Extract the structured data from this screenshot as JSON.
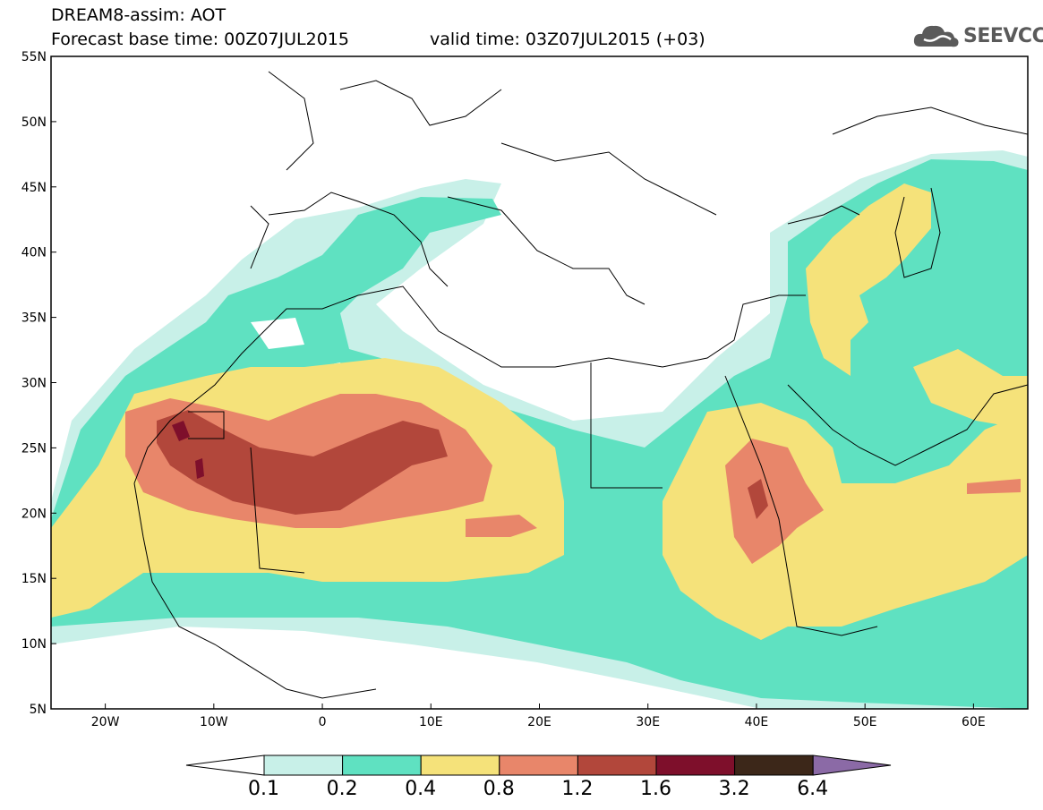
{
  "header": {
    "title": "DREAM8-assim: AOT",
    "base_time": "Forecast base time: 00Z07JUL2015",
    "valid_time": "valid time: 03Z07JUL2015 (+03)"
  },
  "logo": {
    "text": "SEEVCCC",
    "icon": "cloud-logo-icon"
  },
  "map": {
    "lat_labels": [
      "55N",
      "50N",
      "45N",
      "40N",
      "35N",
      "30N",
      "25N",
      "20N",
      "15N",
      "10N",
      "5N"
    ],
    "lon_labels": [
      "20W",
      "10W",
      "0",
      "10E",
      "20E",
      "30E",
      "40E",
      "50E",
      "60E"
    ],
    "lon_range": [
      -25,
      65
    ],
    "lat_range": [
      5,
      55
    ]
  },
  "colorbar": {
    "labels": [
      "0.1",
      "0.2",
      "0.4",
      "0.8",
      "1.2",
      "1.6",
      "3.2",
      "6.4"
    ],
    "colors": [
      "#ffffff",
      "#c8f0e8",
      "#5fe1c1",
      "#f5e27a",
      "#e8866a",
      "#b2473b",
      "#7e0f2b",
      "#3c2719",
      "#8b6aa6"
    ]
  }
}
